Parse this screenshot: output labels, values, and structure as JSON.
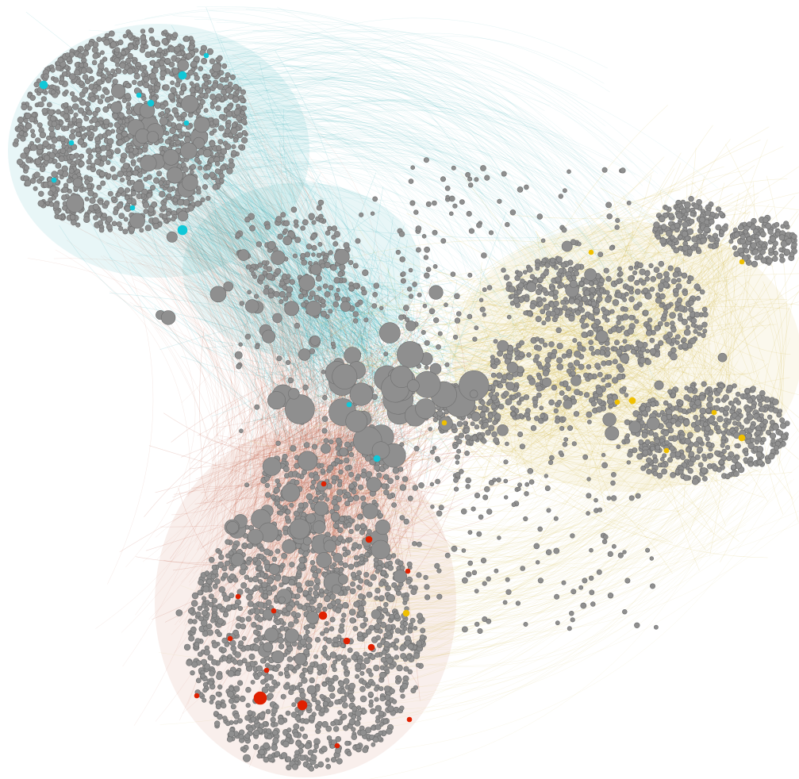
{
  "graph": {
    "background": "#ffffff",
    "node_color": "#8f8f8f",
    "node_stroke": "#6f6f6f",
    "communities": [
      {
        "id": "cyan",
        "edge_color": "#1fa8b0",
        "highlight_color": "#10c8d8"
      },
      {
        "id": "red",
        "edge_color": "#b84a30",
        "highlight_color": "#e02000"
      },
      {
        "id": "yellow",
        "edge_color": "#c8a818",
        "highlight_color": "#f0c000"
      }
    ]
  }
}
